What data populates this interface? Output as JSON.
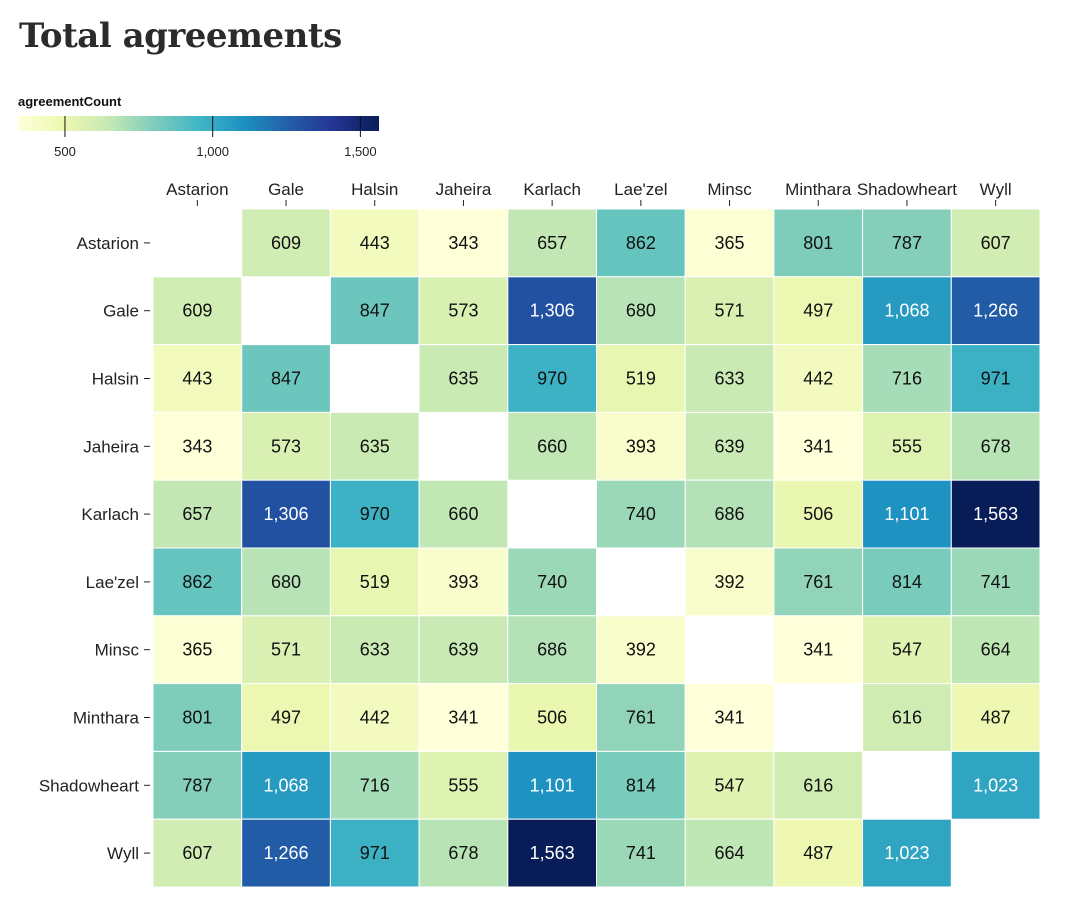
{
  "chart_data": {
    "type": "heatmap",
    "title": "Total agreements",
    "legend": {
      "title": "agreementCount",
      "placement": "top-left",
      "domain": [
        341,
        1563
      ],
      "ticks": [
        500,
        1000,
        1500
      ],
      "tick_labels": [
        "500",
        "1,000",
        "1,500"
      ],
      "color_scheme": "YlGnBu"
    },
    "x_categories": [
      "Astarion",
      "Gale",
      "Halsin",
      "Jaheira",
      "Karlach",
      "Lae'zel",
      "Minsc",
      "Minthara",
      "Shadowheart",
      "Wyll"
    ],
    "y_categories": [
      "Astarion",
      "Gale",
      "Halsin",
      "Jaheira",
      "Karlach",
      "Lae'zel",
      "Minsc",
      "Minthara",
      "Shadowheart",
      "Wyll"
    ],
    "values": [
      [
        null,
        609,
        443,
        343,
        657,
        862,
        365,
        801,
        787,
        607
      ],
      [
        609,
        null,
        847,
        573,
        1306,
        680,
        571,
        497,
        1068,
        1266
      ],
      [
        443,
        847,
        null,
        635,
        970,
        519,
        633,
        442,
        716,
        971
      ],
      [
        343,
        573,
        635,
        null,
        660,
        393,
        639,
        341,
        555,
        678
      ],
      [
        657,
        1306,
        970,
        660,
        null,
        740,
        686,
        506,
        1101,
        1563
      ],
      [
        862,
        680,
        519,
        393,
        740,
        null,
        392,
        761,
        814,
        741
      ],
      [
        365,
        571,
        633,
        639,
        686,
        392,
        null,
        341,
        547,
        664
      ],
      [
        801,
        497,
        442,
        341,
        506,
        761,
        341,
        null,
        616,
        487
      ],
      [
        787,
        1068,
        716,
        555,
        1101,
        814,
        547,
        616,
        null,
        1023
      ],
      [
        607,
        1266,
        971,
        678,
        1563,
        741,
        664,
        487,
        1023,
        null
      ]
    ],
    "value_labels": [
      [
        "",
        "609",
        "443",
        "343",
        "657",
        "862",
        "365",
        "801",
        "787",
        "607"
      ],
      [
        "609",
        "",
        "847",
        "573",
        "1,306",
        "680",
        "571",
        "497",
        "1,068",
        "1,266"
      ],
      [
        "443",
        "847",
        "",
        "635",
        "970",
        "519",
        "633",
        "442",
        "716",
        "971"
      ],
      [
        "343",
        "573",
        "635",
        "",
        "660",
        "393",
        "639",
        "341",
        "555",
        "678"
      ],
      [
        "657",
        "1,306",
        "970",
        "660",
        "",
        "740",
        "686",
        "506",
        "1,101",
        "1,563"
      ],
      [
        "862",
        "680",
        "519",
        "393",
        "740",
        "",
        "392",
        "761",
        "814",
        "741"
      ],
      [
        "365",
        "571",
        "633",
        "639",
        "686",
        "392",
        "",
        "341",
        "547",
        "664"
      ],
      [
        "801",
        "497",
        "442",
        "341",
        "506",
        "761",
        "341",
        "",
        "616",
        "487"
      ],
      [
        "787",
        "1,068",
        "716",
        "555",
        "1,101",
        "814",
        "547",
        "616",
        "",
        "1,023"
      ],
      [
        "607",
        "1,266",
        "971",
        "678",
        "1,563",
        "741",
        "664",
        "487",
        "1,023",
        ""
      ]
    ]
  }
}
